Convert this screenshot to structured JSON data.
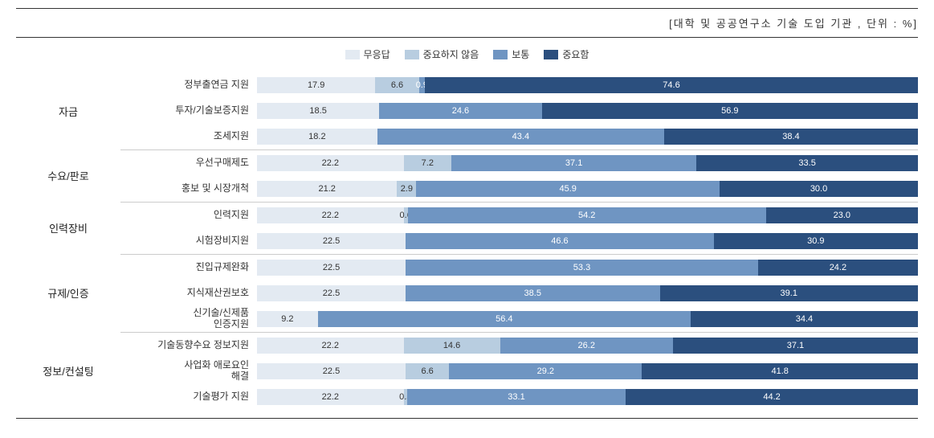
{
  "title": "[대학 및 공공연구소 기술 도입 기관 , 단위 : %]",
  "legend": [
    {
      "label": "무응답",
      "color": "#e3eaf2"
    },
    {
      "label": "중요하지 않음",
      "color": "#b8cde0"
    },
    {
      "label": "보통",
      "color": "#6f95c2"
    },
    {
      "label": "중요함",
      "color": "#2b4f7e"
    }
  ],
  "colors": {
    "seg1": "#e3eaf2",
    "seg2": "#b8cde0",
    "seg3": "#6f95c2",
    "seg4": "#2b4f7e"
  },
  "groups": [
    {
      "label": "자금",
      "rows": [
        {
          "label": "정부출연금 지원",
          "v": [
            17.9,
            6.6,
            0.9,
            74.6
          ]
        },
        {
          "label": "투자/기술보증지원",
          "v": [
            18.5,
            0,
            24.6,
            56.9
          ]
        },
        {
          "label": "조세지원",
          "v": [
            18.2,
            0,
            43.4,
            38.4
          ]
        }
      ]
    },
    {
      "label": "수요/판로",
      "rows": [
        {
          "label": "우선구매제도",
          "v": [
            22.2,
            7.2,
            37.1,
            33.5
          ]
        },
        {
          "label": "홍보 및 시장개척",
          "v": [
            21.2,
            2.9,
            45.9,
            30.0
          ]
        }
      ]
    },
    {
      "label": "인력장비",
      "rows": [
        {
          "label": "인력지원",
          "v": [
            22.2,
            0.6,
            54.2,
            23.0
          ]
        },
        {
          "label": "시험장비지원",
          "v": [
            22.5,
            0,
            46.6,
            30.9
          ]
        }
      ]
    },
    {
      "label": "규제/인증",
      "rows": [
        {
          "label": "진입규제완화",
          "v": [
            22.5,
            0,
            53.3,
            24.2
          ]
        },
        {
          "label": "지식재산권보호",
          "v": [
            22.5,
            0,
            38.5,
            39.1
          ]
        },
        {
          "label": "신기술/신제품\n인증지원",
          "v": [
            9.2,
            0,
            56.4,
            34.4
          ]
        }
      ]
    },
    {
      "label": "정보/컨설팅",
      "rows": [
        {
          "label": "기술동향수요 정보지원",
          "v": [
            22.2,
            14.6,
            26.2,
            37.1
          ]
        },
        {
          "label": "사업화 애로요인\n해결",
          "v": [
            22.5,
            6.6,
            29.2,
            41.8
          ]
        },
        {
          "label": "기술평가 지원",
          "v": [
            22.2,
            0.5,
            33.1,
            44.2
          ]
        }
      ]
    }
  ]
}
